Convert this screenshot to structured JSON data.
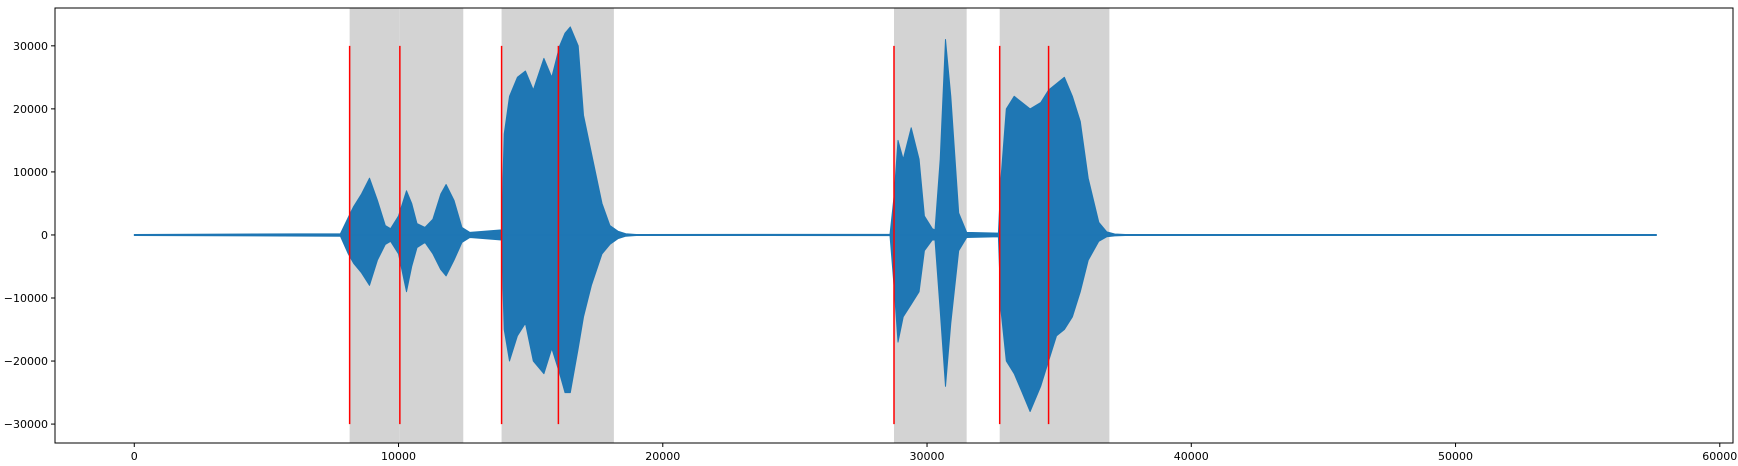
{
  "chart_data": {
    "type": "line",
    "title": "",
    "xlabel": "",
    "ylabel": "",
    "xlim": [
      -3000,
      60500
    ],
    "ylim": [
      -33000,
      36000
    ],
    "xticks": [
      0,
      10000,
      20000,
      30000,
      40000,
      50000,
      60000
    ],
    "xtick_labels": [
      "0",
      "10000",
      "20000",
      "30000",
      "40000",
      "50000",
      "60000"
    ],
    "yticks": [
      -30000,
      -20000,
      -10000,
      0,
      10000,
      20000,
      30000
    ],
    "ytick_labels": [
      "−30000",
      "−20000",
      "−10000",
      "0",
      "10000",
      "20000",
      "30000"
    ],
    "grid": false,
    "legend": "none",
    "colors": {
      "waveform": "#1f77b4",
      "spans": "#d3d3d3",
      "markers": "#ff0000"
    },
    "series": [
      {
        "x_range": [
          0,
          57600
        ],
        "envelope": {
          "x": [
            0,
            7800,
            8100,
            8300,
            8600,
            8900,
            9200,
            9500,
            9700,
            10000,
            10300,
            10500,
            10700,
            11000,
            11300,
            11600,
            11800,
            12100,
            12400,
            12700,
            13900,
            14000,
            14200,
            14500,
            14800,
            15100,
            15500,
            15800,
            16100,
            16300,
            16500,
            16800,
            17000,
            17300,
            17700,
            18000,
            18300,
            18600,
            19000,
            28600,
            28750,
            28900,
            29100,
            29400,
            29700,
            29900,
            30200,
            30300,
            30500,
            30700,
            30900,
            31200,
            31500,
            32700,
            32800,
            33000,
            33300,
            33600,
            33900,
            34300,
            34600,
            34900,
            35200,
            35500,
            35800,
            36100,
            36500,
            36800,
            37100,
            37500,
            57600
          ],
          "upper": [
            80,
            200,
            2800,
            4500,
            6500,
            9000,
            5500,
            1500,
            1000,
            3000,
            7000,
            5000,
            1800,
            1200,
            2500,
            6500,
            8000,
            5500,
            1200,
            400,
            800,
            16000,
            22000,
            25000,
            26000,
            23000,
            28000,
            25000,
            30000,
            32000,
            33000,
            30000,
            19000,
            13000,
            5000,
            1500,
            600,
            200,
            80,
            100,
            6000,
            15000,
            12000,
            17000,
            12000,
            3000,
            1000,
            800,
            12000,
            31000,
            22000,
            3500,
            400,
            300,
            9000,
            20000,
            22000,
            21000,
            20000,
            21000,
            23000,
            24000,
            25000,
            22000,
            18000,
            9000,
            2000,
            500,
            150,
            80,
            80
          ],
          "lower": [
            -80,
            -200,
            -3000,
            -4500,
            -6000,
            -8000,
            -4000,
            -1500,
            -1000,
            -3000,
            -9000,
            -5000,
            -2000,
            -1200,
            -3000,
            -5500,
            -6500,
            -4000,
            -1200,
            -400,
            -800,
            -15000,
            -20000,
            -16000,
            -14000,
            -20000,
            -22000,
            -18000,
            -22000,
            -25000,
            -25000,
            -18000,
            -13000,
            -8000,
            -3000,
            -1500,
            -600,
            -200,
            -80,
            -100,
            -8000,
            -17000,
            -13000,
            -11000,
            -9000,
            -2500,
            -800,
            -800,
            -12000,
            -24000,
            -14000,
            -2500,
            -400,
            -300,
            -12000,
            -20000,
            -22000,
            -25000,
            -28000,
            -24000,
            -20000,
            -16000,
            -15000,
            -13000,
            -9000,
            -4000,
            -1000,
            -300,
            -150,
            -80,
            -80
          ]
        }
      }
    ],
    "highlighted_spans": [
      {
        "x0": 8150,
        "x1": 10050
      },
      {
        "x0": 10050,
        "x1": 12450
      },
      {
        "x0": 13900,
        "x1": 18150
      },
      {
        "x0": 28750,
        "x1": 31500
      },
      {
        "x0": 32750,
        "x1": 36900
      }
    ],
    "marker_lines": {
      "x": [
        8150,
        10050,
        13900,
        16050,
        28750,
        32750,
        34600
      ],
      "y0": -30000,
      "y1": 30000
    }
  }
}
